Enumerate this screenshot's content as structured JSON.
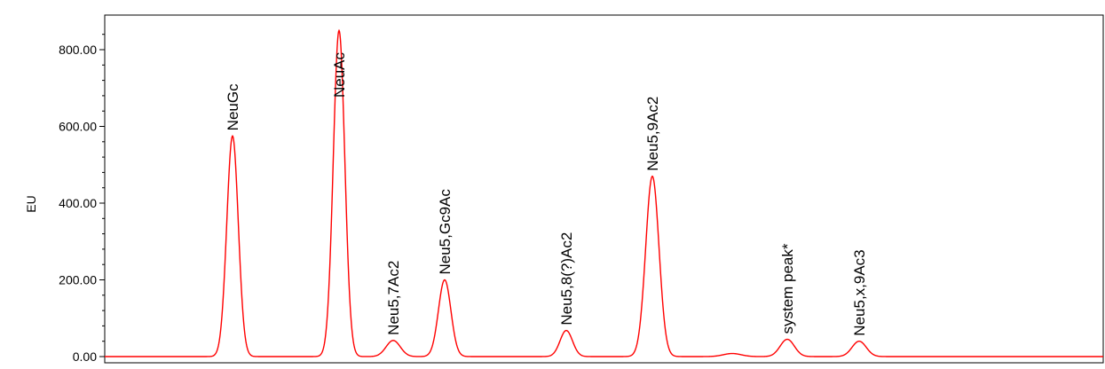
{
  "chart_data": {
    "type": "line",
    "title": "",
    "xlabel": "",
    "ylabel": "EU",
    "ylim": [
      0,
      800
    ],
    "y_ticks": [
      0,
      200,
      400,
      600,
      800
    ],
    "y_tick_labels": [
      "0.00",
      "200.00",
      "400.00",
      "600.00",
      "800.00"
    ],
    "x_ticks_visible": false,
    "grid": false,
    "legend": "none",
    "series": [
      {
        "color": "#ff0000",
        "baseline": 0,
        "peaks": [
          {
            "label": "NeuGc",
            "center": 262,
            "height": 575,
            "width": 6.5
          },
          {
            "label": "NeuAc",
            "center": 382,
            "height": 850,
            "width": 6.5
          },
          {
            "label": "Neu5,7Ac2",
            "center": 443,
            "height": 42,
            "width": 8
          },
          {
            "label": "Neu5,Gc9Ac",
            "center": 501,
            "height": 200,
            "width": 7
          },
          {
            "label": "Neu5,8(?)Ac2",
            "center": 638,
            "height": 68,
            "width": 7
          },
          {
            "label": "Neu5,9Ac2",
            "center": 735,
            "height": 470,
            "width": 7.5
          },
          {
            "label": "",
            "center": 825,
            "height": 8,
            "width": 10
          },
          {
            "label": "system peak*",
            "center": 887,
            "height": 45,
            "width": 8
          },
          {
            "label": "Neu5,x,9Ac3",
            "center": 968,
            "height": 40,
            "width": 8
          }
        ]
      }
    ]
  }
}
